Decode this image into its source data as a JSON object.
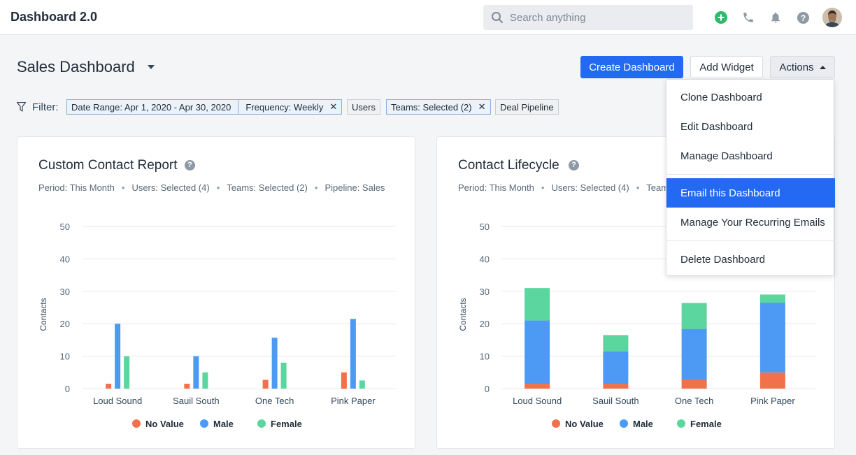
{
  "topbar": {
    "app_title": "Dashboard 2.0",
    "search_placeholder": "Search anything"
  },
  "header": {
    "page_title": "Sales Dashboard",
    "create_label": "Create Dashboard",
    "add_widget_label": "Add Widget",
    "actions_label": "Actions"
  },
  "filters": {
    "label": "Filter:",
    "date_range": "Date Range: Apr 1, 2020 - Apr 30, 2020",
    "frequency": "Frequency: Weekly",
    "users": "Users",
    "teams": "Teams: Selected (2)",
    "deal_pipeline": "Deal Pipeline"
  },
  "actions_menu": {
    "items": [
      "Clone Dashboard",
      "Edit Dashboard",
      "Manage Dashboard",
      "Email this Dashboard",
      "Manage Your Recurring Emails",
      "Delete Dashboard"
    ],
    "active_index": 3
  },
  "colors": {
    "no_value": "#f2714b",
    "male": "#4d9af5",
    "female": "#5ad69e",
    "primary": "#2469f2"
  },
  "cards": [
    {
      "title": "Custom Contact Report",
      "meta": [
        "Period: This Month",
        "Users: Selected (4)",
        "Teams: Selected (2)",
        "Pipeline: Sales"
      ]
    },
    {
      "title": "Contact Lifecycle",
      "meta": [
        "Period: This Month",
        "Users: Selected (4)",
        "Teams: Selected (2)"
      ]
    }
  ],
  "chart_data": [
    {
      "type": "bar",
      "title": "Custom Contact Report",
      "xlabel": "",
      "ylabel": "Contacts",
      "ylim": [
        0,
        50
      ],
      "yticks": [
        0,
        10,
        20,
        30,
        40,
        50
      ],
      "categories": [
        "Loud Sound",
        "Sauil South",
        "One Tech",
        "Pink Paper"
      ],
      "series": [
        {
          "name": "No Value",
          "values": [
            1.5,
            1.5,
            2.7,
            5
          ]
        },
        {
          "name": "Male",
          "values": [
            20,
            10,
            15.7,
            21.5
          ]
        },
        {
          "name": "Female",
          "values": [
            10,
            5,
            8,
            2.5
          ]
        }
      ],
      "grid": true,
      "legend": "bottom"
    },
    {
      "type": "bar",
      "stacked": true,
      "title": "Contact Lifecycle",
      "xlabel": "",
      "ylabel": "Contacts",
      "ylim": [
        0,
        50
      ],
      "yticks": [
        0,
        10,
        20,
        30,
        40,
        50
      ],
      "categories": [
        "Loud Sound",
        "Sauil South",
        "One Tech",
        "Pink Paper"
      ],
      "series": [
        {
          "name": "No Value",
          "values": [
            1.5,
            1.5,
            2.7,
            5
          ]
        },
        {
          "name": "Male",
          "values": [
            19.5,
            10,
            15.7,
            21.5
          ]
        },
        {
          "name": "Female",
          "values": [
            10,
            5,
            8,
            2.5
          ]
        }
      ],
      "grid": true,
      "legend": "bottom"
    }
  ]
}
